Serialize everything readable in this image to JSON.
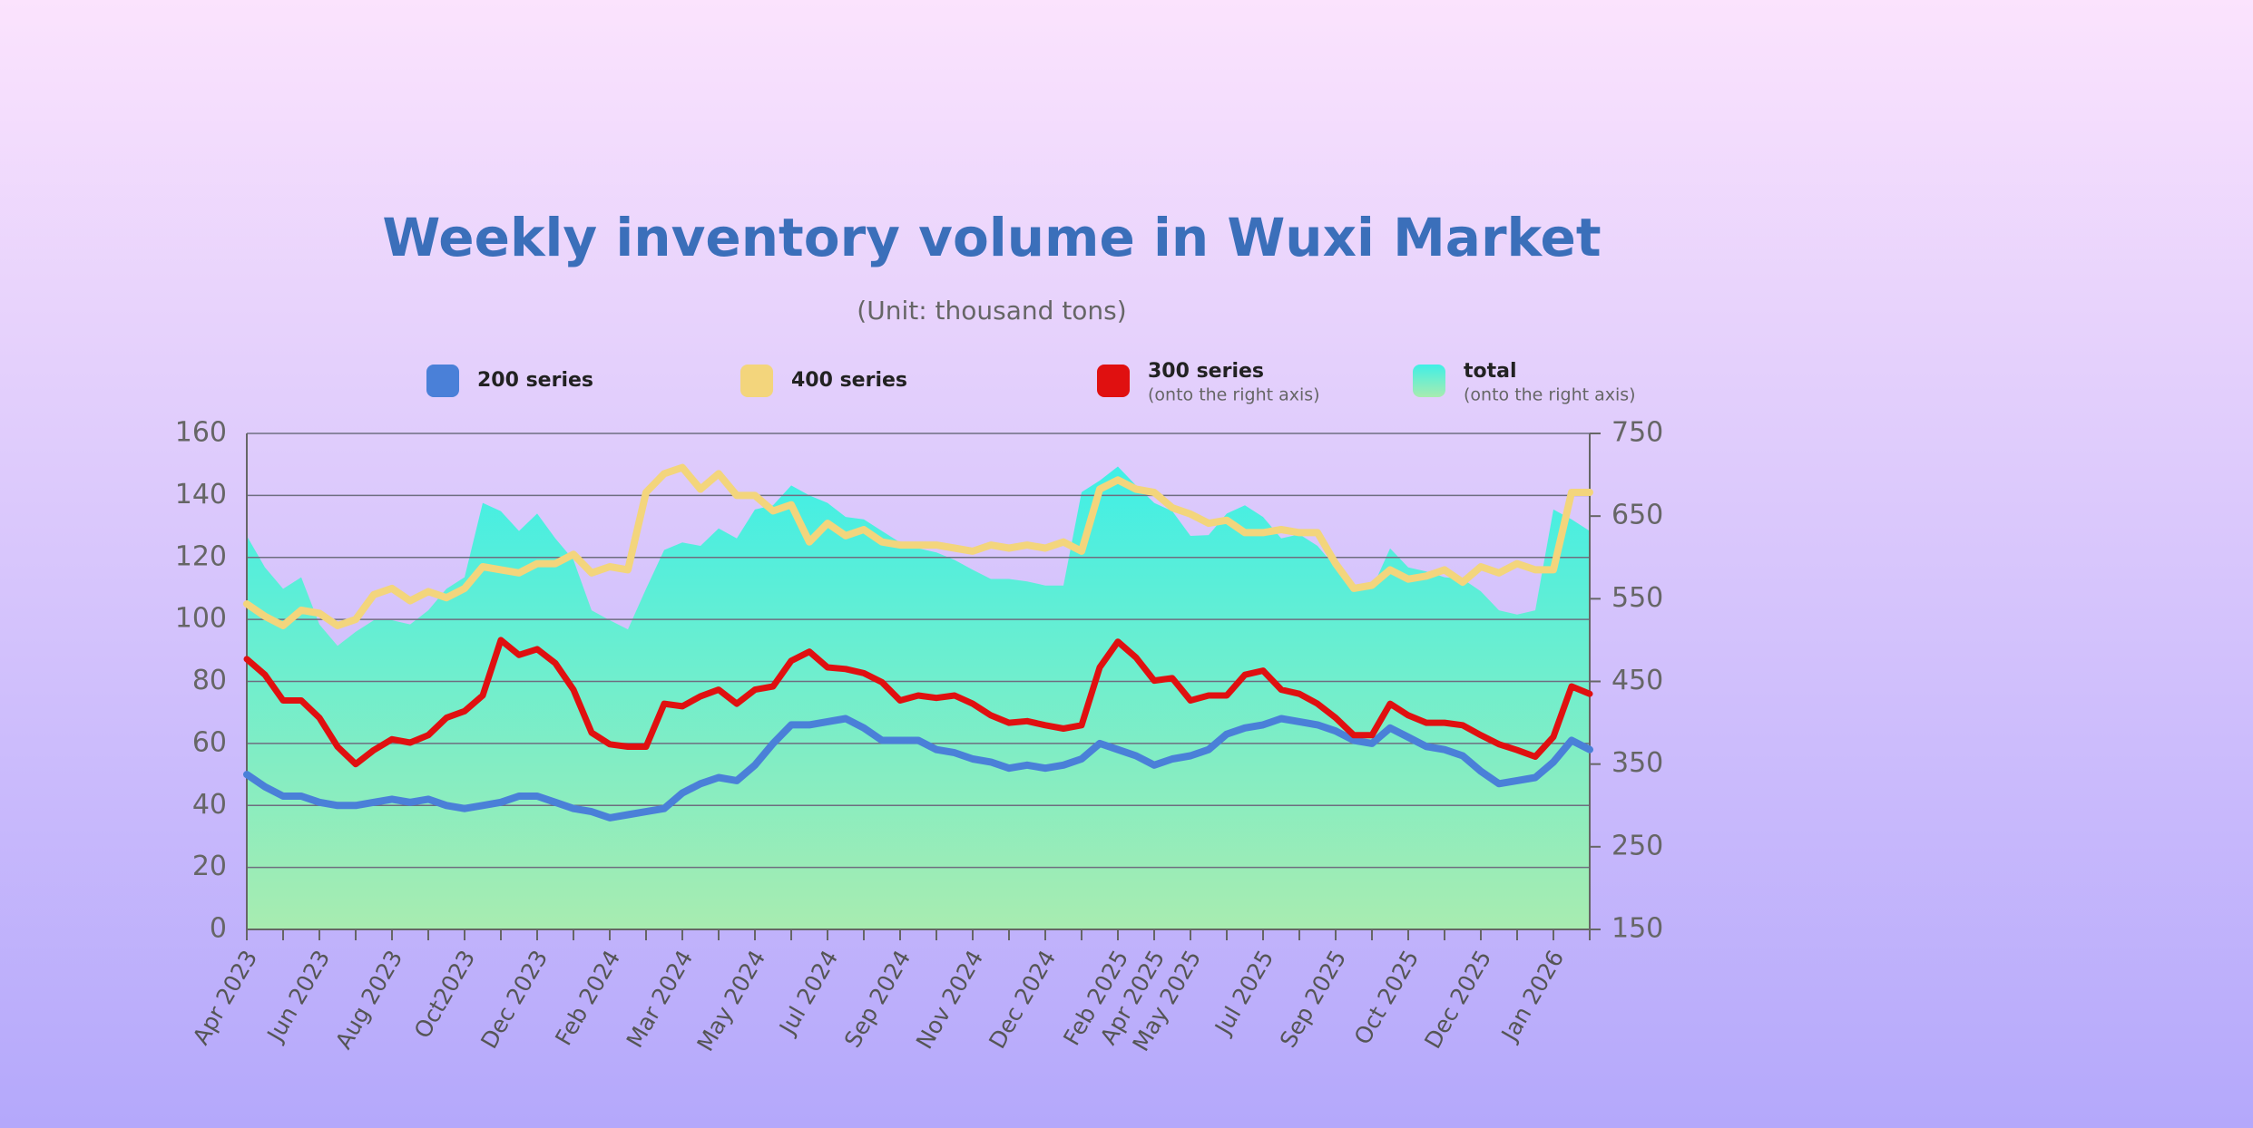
{
  "chart_data": {
    "type": "line",
    "title": "Weekly inventory volume in Wuxi Market",
    "subtitle": "(Unit: thousand tons)",
    "categories": [
      "Apr 2023",
      null,
      null,
      null,
      "Jun 2023",
      null,
      null,
      null,
      "Aug 2023",
      null,
      null,
      null,
      "Oct2023",
      null,
      null,
      null,
      "Dec 2023",
      null,
      null,
      null,
      "Feb 2024",
      null,
      null,
      null,
      "Mar 2024",
      null,
      null,
      null,
      "May 2024",
      null,
      null,
      null,
      "Jul 2024",
      null,
      null,
      null,
      "Sep 2024",
      null,
      null,
      null,
      "Nov 2024",
      null,
      null,
      null,
      "Dec 2024",
      null,
      null,
      null,
      "Feb 2025",
      null,
      "Apr 2025",
      null,
      "May 2025",
      null,
      null,
      null,
      "Jul 2025",
      null,
      null,
      null,
      "Sep 2025",
      null,
      null,
      null,
      "Oct 2025",
      null,
      null,
      null,
      "Dec 2025",
      null,
      null,
      null,
      "Jan 2026",
      null,
      null
    ],
    "series": [
      {
        "name": "200 series",
        "color": "#4a80d8",
        "axis": "y",
        "values": [
          50,
          46,
          43,
          43,
          41,
          40,
          40,
          41,
          42,
          41,
          42,
          40,
          39,
          40,
          41,
          43,
          43,
          41,
          39,
          38,
          36,
          37,
          38,
          39,
          44,
          47,
          49,
          48,
          53,
          60,
          66,
          66,
          67,
          68,
          65,
          61,
          61,
          61,
          58,
          57,
          55,
          54,
          52,
          53,
          52,
          53,
          55,
          60,
          58,
          56,
          53,
          55,
          56,
          58,
          63,
          65,
          66,
          68,
          67,
          66,
          64,
          61,
          60,
          65,
          62,
          59,
          58,
          56,
          51,
          47,
          48,
          49,
          54,
          61,
          58
        ]
      },
      {
        "name": "400 series",
        "color": "#f3d57c",
        "axis": "y",
        "values": [
          105,
          101,
          98,
          103,
          102,
          98,
          100,
          108,
          110,
          106,
          109,
          107,
          110,
          117,
          116,
          115,
          118,
          118,
          121,
          115,
          117,
          116,
          141,
          147,
          149,
          142,
          147,
          140,
          140,
          135,
          137,
          125,
          131,
          127,
          129,
          125,
          124,
          124,
          124,
          123,
          122,
          124,
          123,
          124,
          123,
          125,
          122,
          142,
          145,
          142,
          141,
          136,
          134,
          131,
          132,
          128,
          128,
          129,
          128,
          128,
          118,
          110,
          111,
          116,
          113,
          114,
          116,
          112,
          117,
          115,
          118,
          116,
          116,
          141,
          141
        ]
      },
      {
        "name": "300 series",
        "note": "(onto the right axis)",
        "color": "#e01010",
        "axis": "y2",
        "values": [
          477,
          458,
          427,
          427,
          406,
          371,
          350,
          367,
          380,
          376,
          385,
          406,
          414,
          433,
          500,
          482,
          489,
          472,
          440,
          388,
          374,
          371,
          371,
          423,
          420,
          432,
          440,
          423,
          440,
          444,
          475,
          486,
          467,
          465,
          460,
          449,
          427,
          433,
          430,
          433,
          423,
          409,
          400,
          402,
          397,
          393,
          397,
          467,
          498,
          479,
          451,
          454,
          427,
          433,
          433,
          458,
          463,
          440,
          435,
          423,
          406,
          385,
          385,
          423,
          409,
          400,
          400,
          397,
          385,
          374,
          367,
          359,
          383,
          444,
          435
        ]
      },
      {
        "name": "total",
        "note": "(onto the right axis)",
        "color": "#40efe6",
        "color_bottom": "#a8ecb0",
        "axis": "y2",
        "kind": "area",
        "values": [
          626,
          588,
          562,
          576,
          519,
          493,
          510,
          524,
          524,
          519,
          536,
          562,
          576,
          666,
          656,
          632,
          653,
          623,
          597,
          536,
          524,
          513,
          562,
          609,
          618,
          614,
          635,
          623,
          658,
          663,
          687,
          675,
          666,
          649,
          646,
          632,
          618,
          611,
          606,
          597,
          585,
          574,
          574,
          571,
          566,
          566,
          679,
          693,
          710,
          687,
          666,
          656,
          626,
          627,
          653,
          663,
          649,
          623,
          628,
          614,
          588,
          562,
          562,
          611,
          588,
          583,
          576,
          574,
          559,
          536,
          531,
          536,
          658,
          646,
          632
        ]
      }
    ],
    "ylim": [
      0,
      160
    ],
    "yticks": [
      0,
      20,
      40,
      60,
      80,
      100,
      120,
      140,
      160
    ],
    "y2lim": [
      150,
      750
    ],
    "y2ticks": [
      150,
      250,
      350,
      450,
      550,
      650,
      750
    ],
    "grid": true
  }
}
